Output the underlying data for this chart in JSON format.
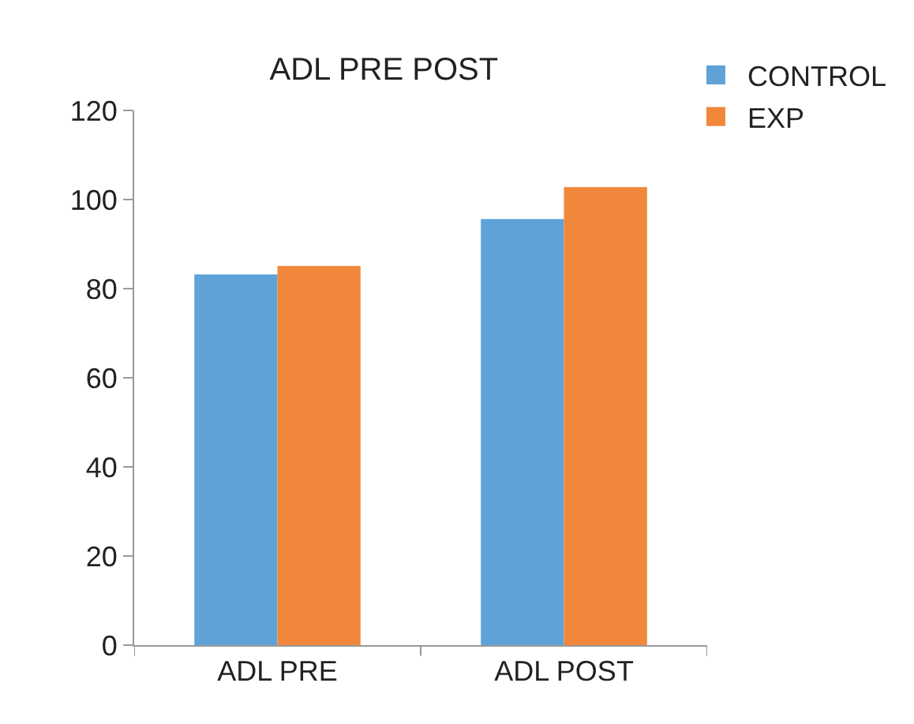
{
  "chart_data": {
    "type": "bar",
    "title": "ADL PRE POST",
    "categories": [
      "ADL PRE",
      "ADL POST"
    ],
    "series": [
      {
        "name": "CONTROL",
        "color": "#5fa2d8",
        "values": [
          83.2,
          95.6
        ]
      },
      {
        "name": "EXP",
        "color": "#f0873a",
        "values": [
          85.1,
          102.8
        ]
      }
    ],
    "ylim": [
      0,
      120
    ],
    "yticks": [
      0,
      20,
      40,
      60,
      80,
      100,
      120
    ],
    "legend": "top right"
  }
}
